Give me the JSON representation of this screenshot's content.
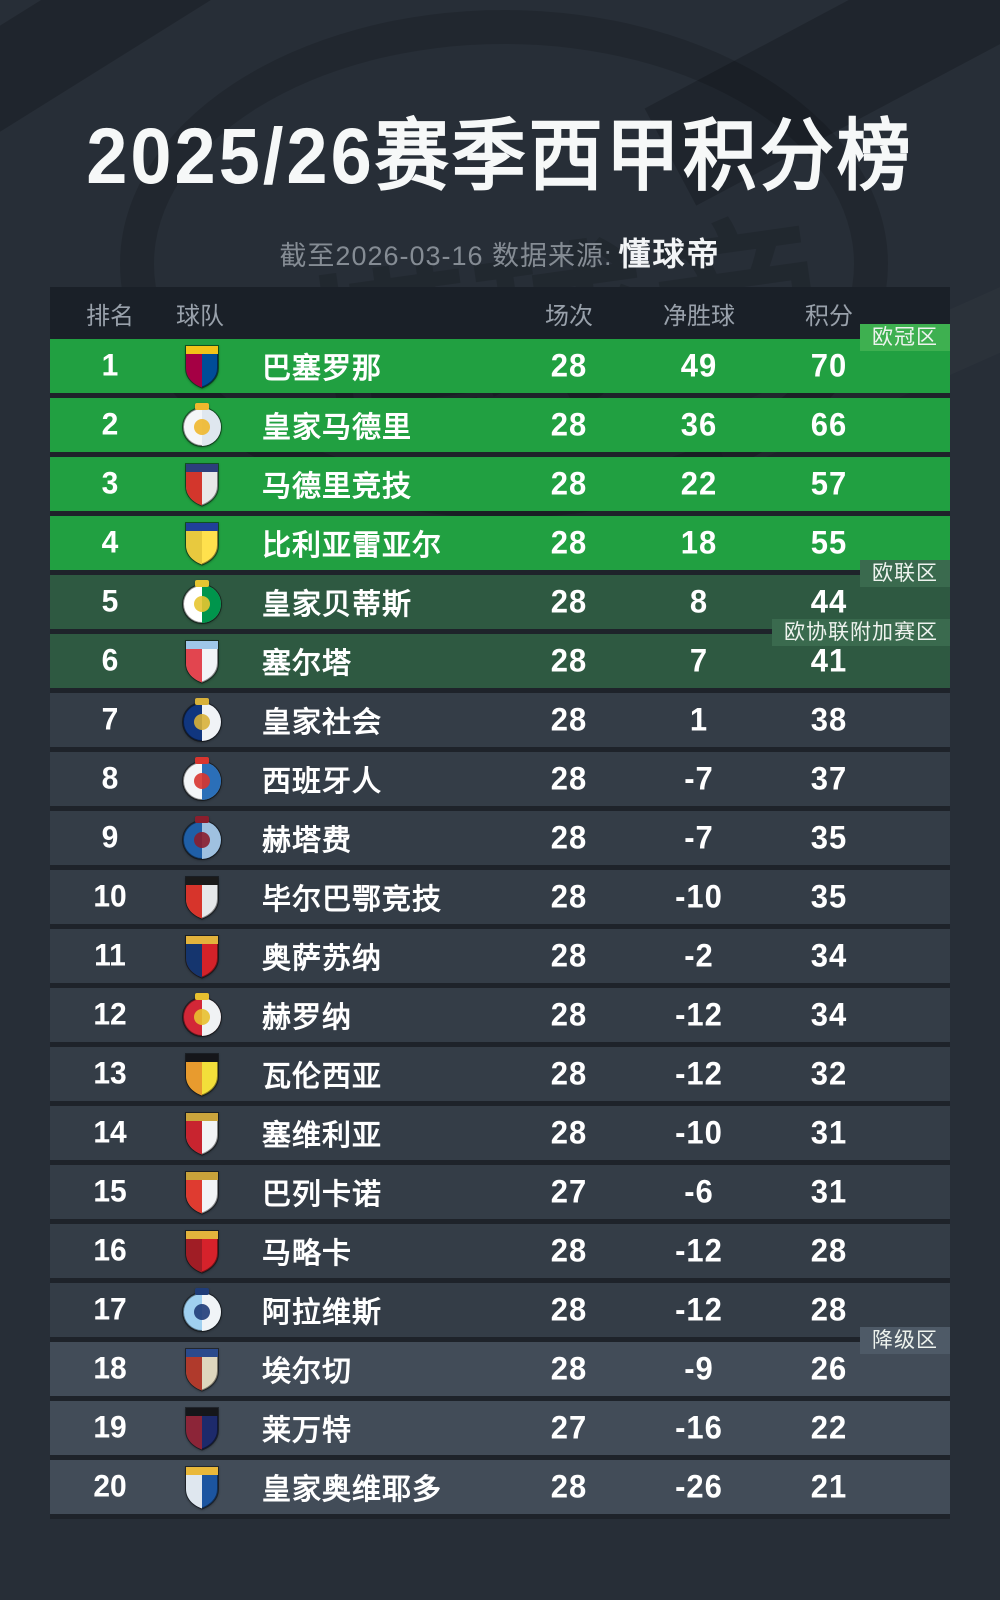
{
  "page": {
    "bg": "#272e37",
    "title": "2025/26赛季西甲积分榜",
    "subtitle_prefix": "截至2026-03-16 数据来源:",
    "source": "懂球帝",
    "watermark": "懂球帝"
  },
  "colors": {
    "header_bar": "#1a2028",
    "header_text": "#99a1ab",
    "row_text": "#ffffff",
    "ucl_row": "#21a041",
    "ucl_badge": "#3eb050",
    "uel_row": "#2e5941",
    "uel_badge": "#3a6a4e",
    "mid_row": "#343d47",
    "releg_row": "#424c58",
    "releg_badge": "#4e5a67"
  },
  "table": {
    "columns": [
      "排名",
      "球队",
      "场次",
      "净胜球",
      "积分"
    ],
    "zones": {
      "ucl": {
        "row_bg": "#21a041",
        "badge_bg": "#3eb050",
        "label": "欧冠区"
      },
      "uel": {
        "row_bg": "#2e5941",
        "badge_bg": "#3a6a4e",
        "label": "欧联区"
      },
      "uecl": {
        "row_bg": "#2e5941",
        "badge_bg": "#3a6a4e",
        "label": "欧协联附加赛区"
      },
      "mid": {
        "row_bg": "#343d47",
        "badge_bg": "",
        "label": ""
      },
      "releg": {
        "row_bg": "#424c58",
        "badge_bg": "#4e5a67",
        "label": "降级区"
      }
    },
    "rows": [
      {
        "rank": "1",
        "team": "巴塞罗那",
        "played": "28",
        "gd": "49",
        "pts": "70",
        "zone": "ucl",
        "badge": "欧冠区",
        "logo": {
          "shape": "shield",
          "c1": "#004d98",
          "c2": "#a50044",
          "c3": "#f2c318"
        }
      },
      {
        "rank": "2",
        "team": "皇家马德里",
        "played": "28",
        "gd": "36",
        "pts": "66",
        "zone": "ucl",
        "badge": "",
        "logo": {
          "shape": "circle",
          "c1": "#f4f6f8",
          "c2": "#dfe7ef",
          "c3": "#f0b82d"
        }
      },
      {
        "rank": "3",
        "team": "马德里竞技",
        "played": "28",
        "gd": "22",
        "pts": "57",
        "zone": "ucl",
        "badge": "",
        "logo": {
          "shape": "shield",
          "c1": "#e8e8e8",
          "c2": "#d3362c",
          "c3": "#2c3f7c"
        }
      },
      {
        "rank": "4",
        "team": "比利亚雷亚尔",
        "played": "28",
        "gd": "18",
        "pts": "55",
        "zone": "ucl",
        "badge": "",
        "logo": {
          "shape": "shield",
          "c1": "#ffe14d",
          "c2": "#e8c93e",
          "c3": "#20409a"
        }
      },
      {
        "rank": "5",
        "team": "皇家贝蒂斯",
        "played": "28",
        "gd": "8",
        "pts": "44",
        "zone": "uel",
        "badge": "欧联区",
        "logo": {
          "shape": "circle",
          "c1": "#ffffff",
          "c2": "#00954c",
          "c3": "#e7c531"
        }
      },
      {
        "rank": "6",
        "team": "塞尔塔",
        "played": "28",
        "gd": "7",
        "pts": "41",
        "zone": "uecl",
        "badge": "欧协联附加赛区",
        "logo": {
          "shape": "shield",
          "c1": "#f2f4f6",
          "c2": "#e2454f",
          "c3": "#9fc6e8"
        }
      },
      {
        "rank": "7",
        "team": "皇家社会",
        "played": "28",
        "gd": "1",
        "pts": "38",
        "zone": "mid",
        "badge": "",
        "logo": {
          "shape": "circle",
          "c1": "#10367f",
          "c2": "#f0f3f6",
          "c3": "#d8b13a"
        }
      },
      {
        "rank": "8",
        "team": "西班牙人",
        "played": "28",
        "gd": "-7",
        "pts": "37",
        "zone": "mid",
        "badge": "",
        "logo": {
          "shape": "circle",
          "c1": "#f3f5f7",
          "c2": "#2b6fb8",
          "c3": "#d8352f"
        }
      },
      {
        "rank": "9",
        "team": "赫塔费",
        "played": "28",
        "gd": "-7",
        "pts": "35",
        "zone": "mid",
        "badge": "",
        "logo": {
          "shape": "circle",
          "c1": "#1f5fa7",
          "c2": "#9fc1e0",
          "c3": "#8a1e2d"
        }
      },
      {
        "rank": "10",
        "team": "毕尔巴鄂竞技",
        "played": "28",
        "gd": "-10",
        "pts": "35",
        "zone": "mid",
        "badge": "",
        "logo": {
          "shape": "shield",
          "c1": "#e6e8ea",
          "c2": "#d7342b",
          "c3": "#1a1a1a"
        }
      },
      {
        "rank": "11",
        "team": "奥萨苏纳",
        "played": "28",
        "gd": "-2",
        "pts": "34",
        "zone": "mid",
        "badge": "",
        "logo": {
          "shape": "shield",
          "c1": "#d42229",
          "c2": "#15356e",
          "c3": "#e3b33c"
        }
      },
      {
        "rank": "12",
        "team": "赫罗纳",
        "played": "28",
        "gd": "-12",
        "pts": "34",
        "zone": "mid",
        "badge": "",
        "logo": {
          "shape": "circle",
          "c1": "#d32737",
          "c2": "#f0f2f4",
          "c3": "#e8c02f"
        }
      },
      {
        "rank": "13",
        "team": "瓦伦西亚",
        "played": "28",
        "gd": "-12",
        "pts": "32",
        "zone": "mid",
        "badge": "",
        "logo": {
          "shape": "shield",
          "c1": "#f3df3a",
          "c2": "#e89b2e",
          "c3": "#15161a"
        }
      },
      {
        "rank": "14",
        "team": "塞维利亚",
        "played": "28",
        "gd": "-10",
        "pts": "31",
        "zone": "mid",
        "badge": "",
        "logo": {
          "shape": "shield",
          "c1": "#f2f3f5",
          "c2": "#c8242f",
          "c3": "#caa43c"
        }
      },
      {
        "rank": "15",
        "team": "巴列卡诺",
        "played": "27",
        "gd": "-6",
        "pts": "31",
        "zone": "mid",
        "badge": "",
        "logo": {
          "shape": "shield",
          "c1": "#f2f4f6",
          "c2": "#df3b30",
          "c3": "#c8a23a"
        }
      },
      {
        "rank": "16",
        "team": "马略卡",
        "played": "28",
        "gd": "-12",
        "pts": "28",
        "zone": "mid",
        "badge": "",
        "logo": {
          "shape": "shield",
          "c1": "#d6222b",
          "c2": "#a01d25",
          "c3": "#e3b33c"
        }
      },
      {
        "rank": "17",
        "team": "阿拉维斯",
        "played": "28",
        "gd": "-12",
        "pts": "28",
        "zone": "mid",
        "badge": "",
        "logo": {
          "shape": "circle",
          "c1": "#9fd0f0",
          "c2": "#f0f4f7",
          "c3": "#1f3c78"
        }
      },
      {
        "rank": "18",
        "team": "埃尔切",
        "played": "28",
        "gd": "-9",
        "pts": "26",
        "zone": "releg",
        "badge": "降级区",
        "logo": {
          "shape": "shield",
          "c1": "#ded6bd",
          "c2": "#b03a2c",
          "c3": "#2b4a8c"
        }
      },
      {
        "rank": "19",
        "team": "莱万特",
        "played": "27",
        "gd": "-16",
        "pts": "22",
        "zone": "releg",
        "badge": "",
        "logo": {
          "shape": "shield",
          "c1": "#1d2a6b",
          "c2": "#8c2538",
          "c3": "#15161a"
        }
      },
      {
        "rank": "20",
        "team": "皇家奥维耶多",
        "played": "28",
        "gd": "-26",
        "pts": "21",
        "zone": "releg",
        "badge": "",
        "logo": {
          "shape": "shield",
          "c1": "#1c55a0",
          "c2": "#dfe7ef",
          "c3": "#e9b83a"
        }
      }
    ]
  }
}
